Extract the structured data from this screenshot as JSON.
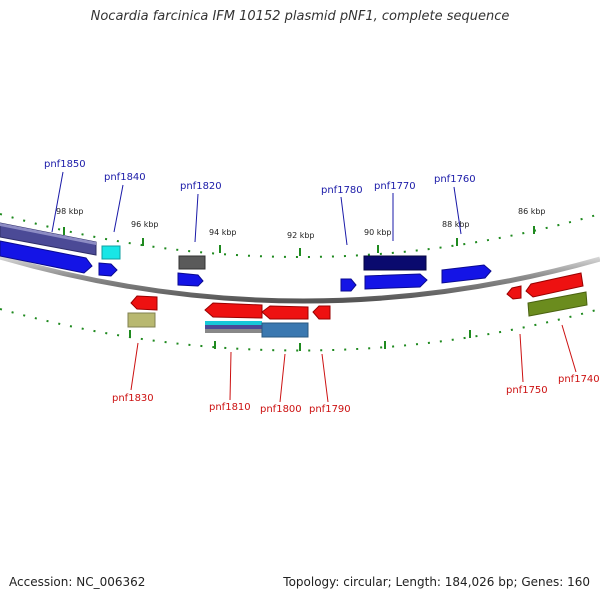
{
  "title": "Nocardia farcinica IFM 10152 plasmid pNF1, complete sequence",
  "footer": {
    "accession": "Accession: NC_006362",
    "summary": "Topology: circular; Length: 184,026 bp; Genes: 160"
  },
  "scale_labels": {
    "k98": "98 kbp",
    "k96": "96 kbp",
    "k94": "94 kbp",
    "k92": "92 kbp",
    "k90": "90 kbp",
    "k88": "88 kbp",
    "k86": "86 kbp"
  },
  "gene_labels": {
    "top": {
      "pnf1850": "pnf1850",
      "pnf1840": "pnf1840",
      "pnf1820": "pnf1820",
      "pnf1780": "pnf1780",
      "pnf1770": "pnf1770",
      "pnf1760": "pnf1760"
    },
    "bottom": {
      "pnf1830": "pnf1830",
      "pnf1810": "pnf1810",
      "pnf1800": "pnf1800",
      "pnf1790": "pnf1790",
      "pnf1750": "pnf1750",
      "pnf1740": "pnf1740"
    }
  },
  "colors": {
    "forward_label": "#1a1aa8",
    "reverse_label": "#cc1111",
    "blue": "#1414e6",
    "navy": "#0a0a6e",
    "slate": "#4b4a96",
    "cyan": "#18e6e6",
    "gray": "#5a5a5a",
    "red": "#ee1111",
    "olive": "#b8b870",
    "green": "#6b8c1e",
    "steel": "#3a78b0",
    "tick": "#1f8a1f"
  }
}
